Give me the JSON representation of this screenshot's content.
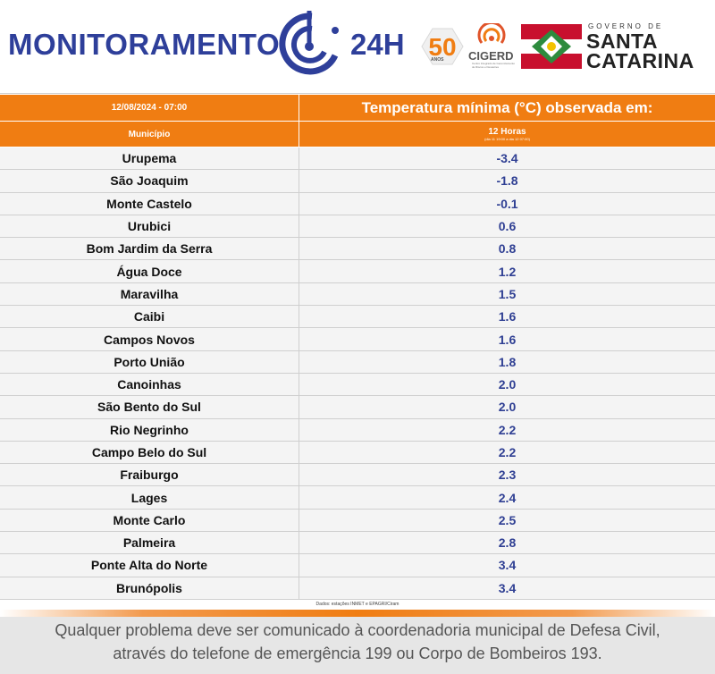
{
  "header": {
    "brand": "MONITORAMENTO",
    "brand_suffix": "24H",
    "anniversary": "50",
    "anniversary_label": "ANOS",
    "cigerd": "CIGERD",
    "cigerd_sub": "Centro Integrado de Gerenciamento de Riscos e Desastres",
    "gov_top": "GOVERNO DE",
    "gov_state_line1": "SANTA",
    "gov_state_line2": "CATARINA",
    "brand_color": "#2e3f9a"
  },
  "table": {
    "datetime": "12/08/2024 - 07:00",
    "title": "Temperatura mínima (°C) observada em:",
    "col_city": "Município",
    "col_period": "12 Horas",
    "col_period_detail": "(dia 11 19:00 a dia 12 07:00)",
    "accent_color": "#f07d12",
    "value_color": "#2f3f93",
    "rows": [
      {
        "city": "Urupema",
        "value": "-3.4"
      },
      {
        "city": "São Joaquim",
        "value": "-1.8"
      },
      {
        "city": "Monte Castelo",
        "value": "-0.1"
      },
      {
        "city": "Urubici",
        "value": "0.6"
      },
      {
        "city": "Bom Jardim da Serra",
        "value": "0.8"
      },
      {
        "city": "Água Doce",
        "value": "1.2"
      },
      {
        "city": "Maravilha",
        "value": "1.5"
      },
      {
        "city": "Caibi",
        "value": "1.6"
      },
      {
        "city": "Campos Novos",
        "value": "1.6"
      },
      {
        "city": "Porto União",
        "value": "1.8"
      },
      {
        "city": "Canoinhas",
        "value": "2.0"
      },
      {
        "city": "São Bento do Sul",
        "value": "2.0"
      },
      {
        "city": "Rio Negrinho",
        "value": "2.2"
      },
      {
        "city": "Campo Belo do Sul",
        "value": "2.2"
      },
      {
        "city": "Fraiburgo",
        "value": "2.3"
      },
      {
        "city": "Lages",
        "value": "2.4"
      },
      {
        "city": "Monte Carlo",
        "value": "2.5"
      },
      {
        "city": "Palmeira",
        "value": "2.8"
      },
      {
        "city": "Ponte Alta do Norte",
        "value": "3.4"
      },
      {
        "city": "Brunópolis",
        "value": "3.4"
      }
    ],
    "source": "Dados: estações INMET e EPAGRI/Ciram"
  },
  "footer": {
    "line1": "Qualquer problema deve ser comunicado à coordenadoria municipal de Defesa Civil,",
    "line2": "através do telefone de emergência 199 ou Corpo de Bombeiros 193."
  }
}
